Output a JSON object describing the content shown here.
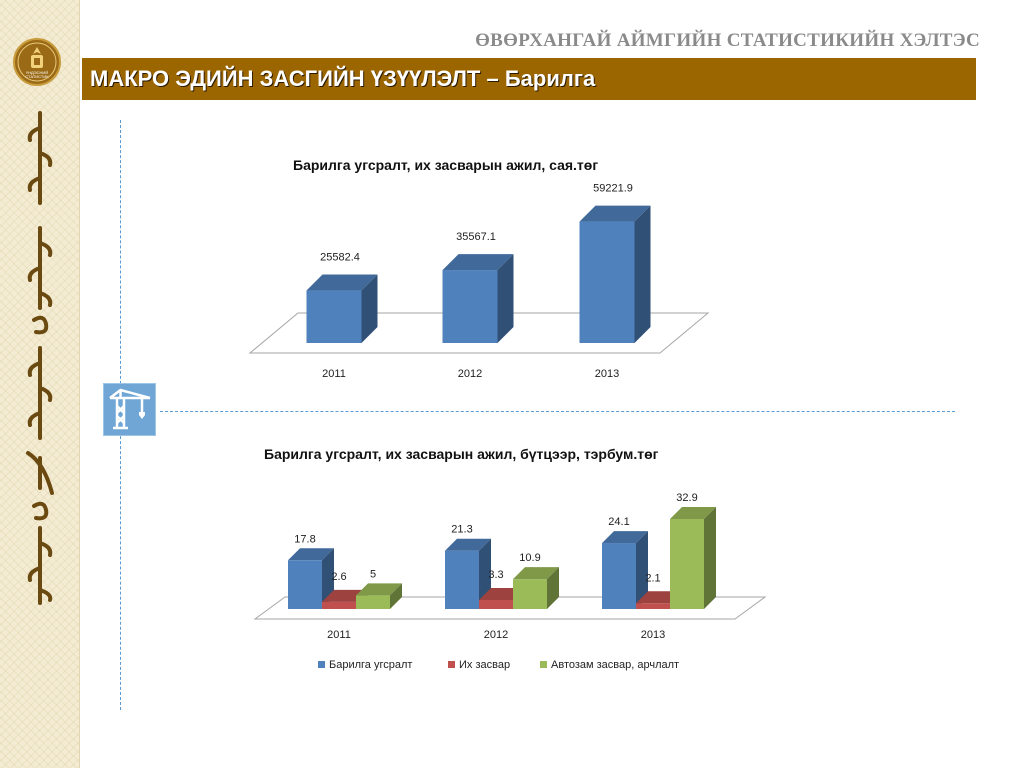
{
  "header": {
    "org_name": "ӨВӨРХАНГАЙ АЙМГИЙН СТАТИСТИКИЙН ХЭЛТЭС",
    "title": "МАКРО ЭДИЙН ЗАСГИЙН ҮЗҮҮЛЭЛТ – Барилга"
  },
  "logo": {
    "text_line1": "ҮНДЭСНИЙ",
    "text_line2": "СТАТИСТИК"
  },
  "colors": {
    "title_bar": "#9b6500",
    "series_blue": "#4f81bd",
    "series_red": "#c0504d",
    "series_green": "#9bbb59",
    "divider": "#5b9bd5"
  },
  "icon": "crane-icon",
  "chart_data": [
    {
      "type": "bar",
      "style": "3d-column",
      "title": "Барилга угсралт, их засварын ажил, сая.төг",
      "categories": [
        "2011",
        "2012",
        "2013"
      ],
      "series": [
        {
          "values": [
            25582.4,
            35567.1,
            59221.9
          ],
          "labels": [
            "25582.4",
            "35567.1",
            "59221.9"
          ]
        }
      ],
      "ylim": [
        0,
        60000
      ],
      "grid": false,
      "legend": "none"
    },
    {
      "type": "bar",
      "style": "3d-column",
      "title": "Барилга угсралт, их засварын ажил, бүтцээр, тэрбум.төг",
      "categories": [
        "2011",
        "2012",
        "2013"
      ],
      "series": [
        {
          "name": "Барилга угсралт",
          "values": [
            17.8,
            21.3,
            24.1
          ],
          "labels": [
            "17.8",
            "21.3",
            "24.1"
          ]
        },
        {
          "name": "Их засвар",
          "values": [
            2.6,
            3.3,
            2.1
          ],
          "labels": [
            "2.6",
            "3.3",
            "2.1"
          ]
        },
        {
          "name": "Автозам засвар, арчлалт",
          "values": [
            5,
            10.9,
            32.9
          ],
          "labels": [
            "5",
            "10.9",
            "32.9"
          ]
        }
      ],
      "ylim": [
        0,
        35
      ],
      "grid": false,
      "legend": "bottom"
    }
  ]
}
